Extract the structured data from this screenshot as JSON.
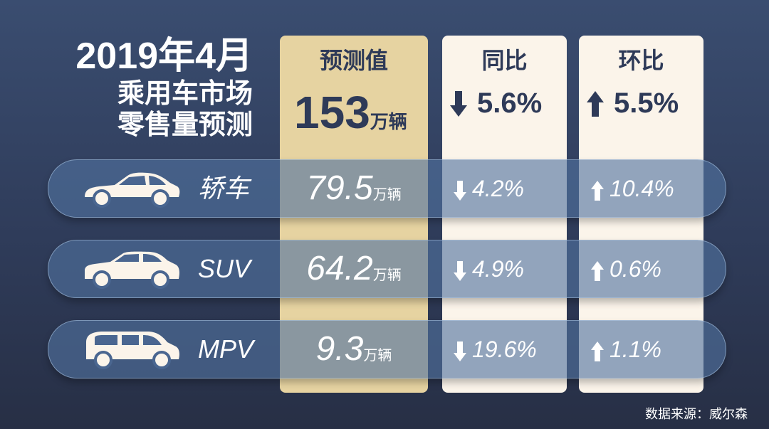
{
  "title": {
    "line1": "2019年4月",
    "line2": "乘用车市场",
    "line3": "零售量预测"
  },
  "columns": {
    "forecast_header": "预测值",
    "yoy_header": "同比",
    "mom_header": "环比"
  },
  "total": {
    "value": "153",
    "unit": "万辆",
    "yoy": "5.6%",
    "yoy_direction": "down",
    "mom": "5.5%",
    "mom_direction": "up"
  },
  "rows": [
    {
      "label": "轿车",
      "icon": "sedan-car-icon",
      "value": "79.5",
      "unit": "万辆",
      "yoy": "4.2%",
      "yoy_direction": "down",
      "mom": "10.4%",
      "mom_direction": "up"
    },
    {
      "label": "SUV",
      "icon": "suv-car-icon",
      "value": "64.2",
      "unit": "万辆",
      "yoy": "4.9%",
      "yoy_direction": "down",
      "mom": "0.6%",
      "mom_direction": "up"
    },
    {
      "label": "MPV",
      "icon": "mpv-car-icon",
      "value": "9.3",
      "unit": "万辆",
      "yoy": "19.6%",
      "yoy_direction": "down",
      "mom": "1.1%",
      "mom_direction": "up"
    }
  ],
  "source": "数据来源：威尔森",
  "colors": {
    "background": "#34456a",
    "forecast_column": "#e6d3a1",
    "change_column": "#fbf4ea",
    "header_text": "#2e3a58",
    "band": "#5073a0"
  }
}
